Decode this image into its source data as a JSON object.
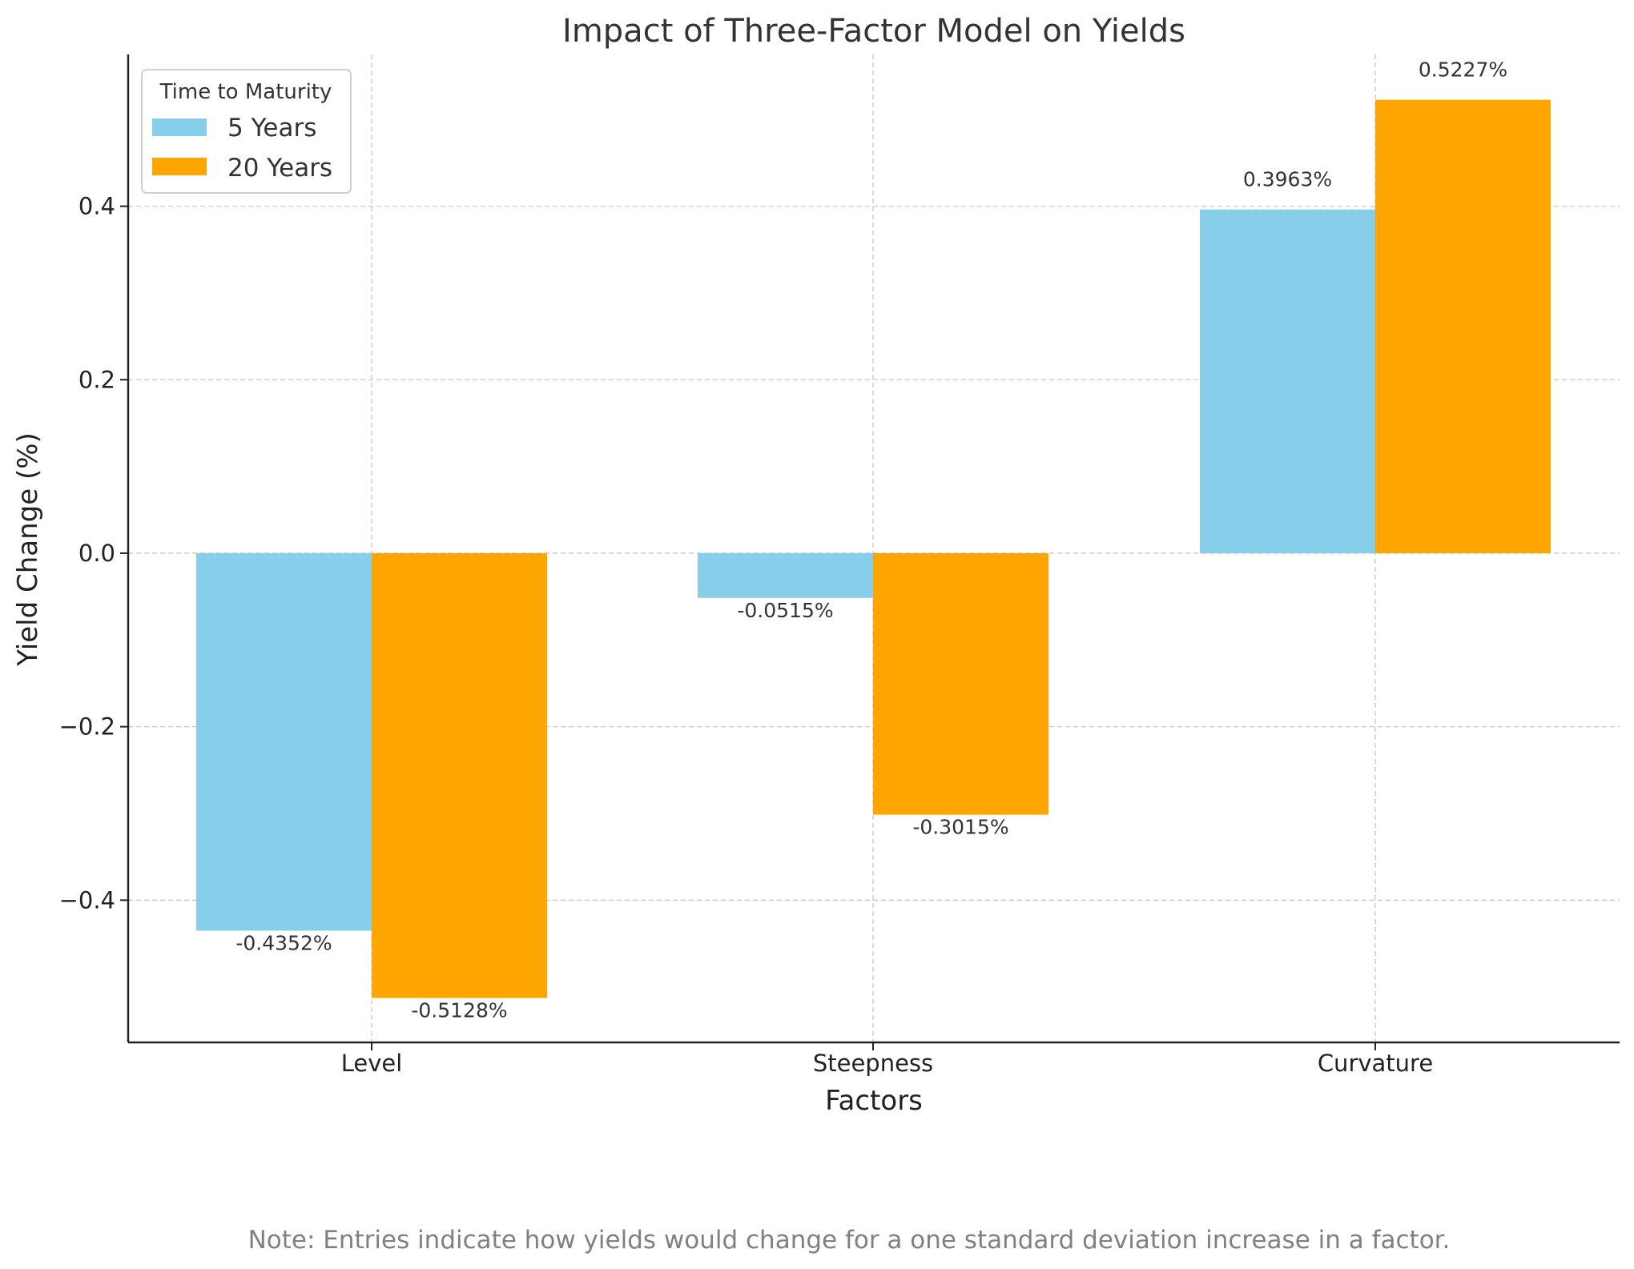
{
  "chart_data": {
    "type": "bar",
    "title": "Impact of Three-Factor Model on Yields",
    "xlabel": "Factors",
    "ylabel": "Yield Change (%)",
    "categories": [
      "Level",
      "Steepness",
      "Curvature"
    ],
    "series": [
      {
        "name": "5 Years",
        "color": "#87CEEB",
        "values": [
          -0.4352,
          -0.0515,
          0.3963
        ],
        "labels": [
          "-0.4352%",
          "-0.0515%",
          "0.3963%"
        ]
      },
      {
        "name": "20 Years",
        "color": "#FFA500",
        "values": [
          -0.5128,
          -0.3015,
          0.5227
        ],
        "labels": [
          "-0.5128%",
          "-0.3015%",
          "0.5227%"
        ]
      }
    ],
    "ylim": [
      -0.564,
      0.575
    ],
    "yticks": [
      -0.4,
      -0.2,
      0.0,
      0.2,
      0.4
    ],
    "ytick_labels": [
      "−0.4",
      "−0.2",
      "0.0",
      "0.2",
      "0.4"
    ],
    "grid": true,
    "legend": {
      "title": "Time to Maturity",
      "placement": "top-left"
    }
  },
  "note": "Note: Entries indicate how yields would change for a one standard deviation increase in a factor."
}
